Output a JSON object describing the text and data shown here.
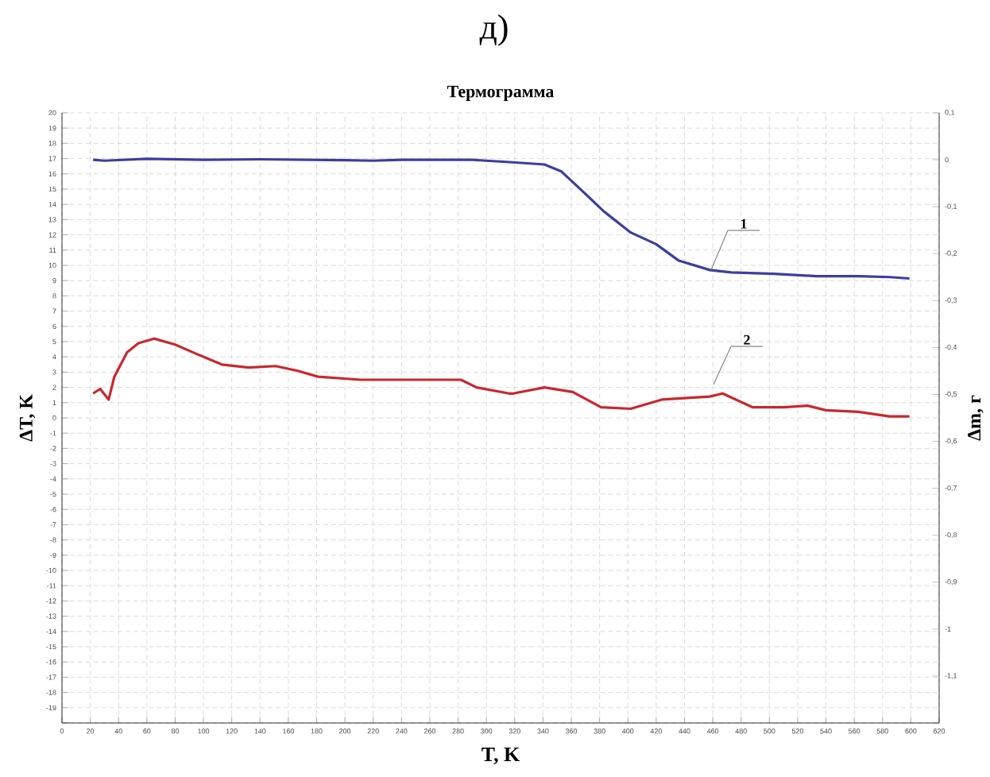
{
  "chart_data": {
    "type": "line",
    "title": "Термограмма",
    "xlabel": "T, K",
    "ylabel": "ΔT, K",
    "y2label": "Δm, г",
    "annotations": [
      "д)",
      "1",
      "2"
    ],
    "xlim": [
      0,
      620
    ],
    "xticks": [
      0,
      20,
      40,
      60,
      80,
      100,
      120,
      140,
      160,
      180,
      200,
      220,
      240,
      260,
      280,
      300,
      320,
      340,
      360,
      380,
      400,
      420,
      440,
      460,
      480,
      500,
      520,
      540,
      560,
      580,
      600,
      620
    ],
    "ylim": [
      -20,
      20
    ],
    "yticks": [
      {
        "value": -20,
        "label": null
      },
      -19,
      -18,
      -17,
      -16,
      -15,
      -14,
      -13,
      -12,
      -11,
      -10,
      -9,
      -8,
      -7,
      -6,
      -5,
      -4,
      -3,
      -2,
      -1,
      0,
      1,
      2,
      3,
      4,
      5,
      6,
      7,
      8,
      9,
      10,
      11,
      12,
      13,
      14,
      15,
      16,
      17,
      18,
      19,
      20
    ],
    "y2lim": [
      -1.2,
      0.1
    ],
    "y2ticks": [
      {
        "value": -1.2,
        "label": null
      },
      {
        "value": -1.1,
        "label": "-1,1"
      },
      {
        "value": -1,
        "label": "-1"
      },
      {
        "value": -0.9,
        "label": "-0,9"
      },
      {
        "value": -0.8,
        "label": "-0,8"
      },
      {
        "value": -0.7,
        "label": "-0,7"
      },
      {
        "value": -0.6,
        "label": "-0,6"
      },
      {
        "value": -0.5,
        "label": "-0,5"
      },
      {
        "value": -0.4,
        "label": "-0,4"
      },
      {
        "value": -0.3,
        "label": "-0,3"
      },
      {
        "value": -0.2,
        "label": "-0,2"
      },
      {
        "value": -0.1,
        "label": "-0,1"
      },
      {
        "value": 0,
        "label": "0"
      },
      {
        "value": 0.1,
        "label": "0,1"
      }
    ],
    "grid": true,
    "marker": "none",
    "line_style": "solid",
    "series": [
      {
        "axis": "y2",
        "color": "#3a3fa0",
        "x": [
          22,
          30,
          60,
          100,
          140,
          200,
          220,
          240,
          290,
          300,
          316,
          341,
          353,
          369,
          383,
          402,
          420,
          436,
          458,
          473,
          503,
          533,
          563,
          585,
          599
        ],
        "values": [
          0,
          -0.002,
          0.002,
          0,
          0.001,
          -0.001,
          -0.002,
          0,
          0,
          -0.002,
          -0.005,
          -0.01,
          -0.025,
          -0.07,
          -0.11,
          -0.155,
          -0.18,
          -0.215,
          -0.235,
          -0.24,
          -0.243,
          -0.248,
          -0.248,
          -0.25,
          -0.253
        ]
      },
      {
        "axis": "y",
        "color": "#c8282d",
        "x": [
          22,
          27,
          33,
          37,
          46,
          54,
          65,
          80,
          95,
          113,
          132,
          151,
          166,
          181,
          211,
          248,
          282,
          293,
          316,
          319,
          341,
          361,
          381,
          402,
          424,
          458,
          467,
          488,
          510,
          527,
          540,
          563,
          585,
          599
        ],
        "values": [
          1.6,
          1.9,
          1.2,
          2.7,
          4.3,
          4.9,
          5.2,
          4.8,
          4.2,
          3.5,
          3.3,
          3.4,
          3.1,
          2.7,
          2.5,
          2.5,
          2.5,
          2.0,
          1.6,
          1.6,
          2.0,
          1.7,
          0.7,
          0.6,
          1.2,
          1.4,
          1.6,
          0.7,
          0.7,
          0.8,
          0.5,
          0.4,
          0.1,
          0.1
        ]
      }
    ]
  }
}
